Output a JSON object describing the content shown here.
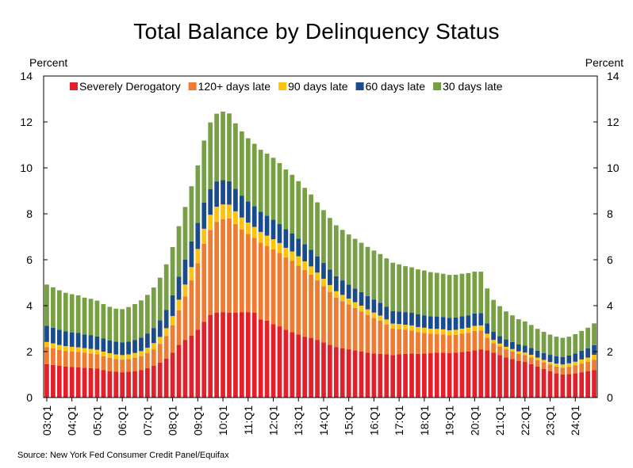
{
  "chart_data": {
    "type": "bar",
    "stacked": true,
    "title": "Total Balance by Delinquency Status",
    "ylabel_left": "Percent",
    "ylabel_right": "Percent",
    "ylim": [
      0,
      14
    ],
    "yticks": [
      0,
      2,
      4,
      6,
      8,
      10,
      12,
      14
    ],
    "xtick_labels": [
      "03:Q1",
      "04:Q1",
      "05:Q1",
      "06:Q1",
      "07:Q1",
      "08:Q1",
      "09:Q1",
      "10:Q1",
      "11:Q1",
      "12:Q1",
      "13:Q1",
      "14:Q1",
      "15:Q1",
      "16:Q1",
      "17:Q1",
      "18:Q1",
      "19:Q1",
      "20:Q1",
      "21:Q1",
      "22:Q1",
      "23:Q1",
      "24:Q1"
    ],
    "legend_position": "top",
    "source": "Source: New York Fed Consumer Credit Panel/Equifax",
    "series": [
      {
        "name": "Severely Derogatory",
        "color": "#e3202a",
        "values": [
          1.45,
          1.42,
          1.38,
          1.35,
          1.33,
          1.32,
          1.3,
          1.28,
          1.26,
          1.2,
          1.15,
          1.12,
          1.1,
          1.12,
          1.15,
          1.2,
          1.28,
          1.38,
          1.52,
          1.7,
          1.95,
          2.3,
          2.5,
          2.7,
          2.95,
          3.3,
          3.6,
          3.7,
          3.72,
          3.7,
          3.7,
          3.72,
          3.72,
          3.7,
          3.4,
          3.35,
          3.2,
          3.1,
          2.95,
          2.85,
          2.75,
          2.65,
          2.6,
          2.5,
          2.4,
          2.3,
          2.2,
          2.15,
          2.1,
          2.05,
          2.0,
          1.95,
          1.92,
          1.9,
          1.88,
          1.85,
          1.88,
          1.9,
          1.92,
          1.9,
          1.92,
          1.93,
          1.95,
          1.95,
          1.93,
          1.95,
          1.98,
          2.0,
          2.05,
          2.1,
          2.05,
          1.95,
          1.85,
          1.75,
          1.68,
          1.6,
          1.55,
          1.45,
          1.35,
          1.25,
          1.15,
          1.05,
          1.0,
          1.02,
          1.05,
          1.1,
          1.15,
          1.2
        ]
      },
      {
        "name": "120+ days late",
        "color": "#ee7b30",
        "values": [
          0.75,
          0.72,
          0.7,
          0.68,
          0.67,
          0.66,
          0.65,
          0.64,
          0.62,
          0.6,
          0.58,
          0.56,
          0.55,
          0.56,
          0.58,
          0.6,
          0.65,
          0.72,
          0.82,
          0.98,
          1.2,
          1.5,
          1.9,
          2.4,
          2.9,
          3.4,
          3.7,
          3.95,
          4.05,
          4.1,
          3.85,
          3.6,
          3.4,
          3.25,
          3.35,
          3.25,
          3.25,
          3.2,
          3.15,
          3.1,
          3.0,
          2.9,
          2.75,
          2.6,
          2.45,
          2.3,
          2.15,
          2.05,
          1.95,
          1.85,
          1.75,
          1.65,
          1.55,
          1.45,
          1.3,
          1.15,
          1.1,
          1.05,
          1.0,
          0.95,
          0.9,
          0.85,
          0.82,
          0.8,
          0.78,
          0.78,
          0.8,
          0.82,
          0.85,
          0.82,
          0.55,
          0.42,
          0.38,
          0.35,
          0.32,
          0.3,
          0.3,
          0.3,
          0.28,
          0.28,
          0.28,
          0.3,
          0.3,
          0.32,
          0.35,
          0.38,
          0.4,
          0.45
        ]
      },
      {
        "name": "90 days late",
        "color": "#fcc20c",
        "values": [
          0.22,
          0.22,
          0.21,
          0.21,
          0.21,
          0.21,
          0.2,
          0.2,
          0.2,
          0.2,
          0.2,
          0.2,
          0.2,
          0.2,
          0.21,
          0.22,
          0.24,
          0.27,
          0.3,
          0.34,
          0.4,
          0.46,
          0.52,
          0.58,
          0.62,
          0.65,
          0.66,
          0.66,
          0.64,
          0.6,
          0.56,
          0.52,
          0.5,
          0.48,
          0.46,
          0.45,
          0.44,
          0.43,
          0.42,
          0.41,
          0.4,
          0.38,
          0.36,
          0.34,
          0.32,
          0.3,
          0.28,
          0.27,
          0.26,
          0.25,
          0.25,
          0.24,
          0.23,
          0.22,
          0.22,
          0.22,
          0.22,
          0.22,
          0.22,
          0.22,
          0.22,
          0.22,
          0.22,
          0.22,
          0.22,
          0.22,
          0.22,
          0.22,
          0.22,
          0.22,
          0.18,
          0.14,
          0.12,
          0.11,
          0.11,
          0.11,
          0.11,
          0.11,
          0.11,
          0.11,
          0.12,
          0.13,
          0.14,
          0.15,
          0.16,
          0.18,
          0.19,
          0.21
        ]
      },
      {
        "name": "60 days late",
        "color": "#1a4c8c",
        "values": [
          0.7,
          0.68,
          0.66,
          0.64,
          0.63,
          0.62,
          0.6,
          0.6,
          0.58,
          0.57,
          0.56,
          0.55,
          0.55,
          0.56,
          0.57,
          0.59,
          0.62,
          0.66,
          0.72,
          0.8,
          0.9,
          1.0,
          1.08,
          1.12,
          1.14,
          1.14,
          1.12,
          1.1,
          1.06,
          1.02,
          0.98,
          0.95,
          0.92,
          0.9,
          0.88,
          0.87,
          0.85,
          0.83,
          0.81,
          0.79,
          0.77,
          0.75,
          0.73,
          0.71,
          0.69,
          0.67,
          0.65,
          0.63,
          0.61,
          0.6,
          0.59,
          0.58,
          0.57,
          0.56,
          0.55,
          0.55,
          0.55,
          0.55,
          0.55,
          0.55,
          0.54,
          0.54,
          0.54,
          0.54,
          0.54,
          0.54,
          0.54,
          0.54,
          0.54,
          0.54,
          0.45,
          0.36,
          0.33,
          0.32,
          0.31,
          0.3,
          0.3,
          0.3,
          0.3,
          0.3,
          0.31,
          0.32,
          0.33,
          0.34,
          0.36,
          0.38,
          0.4,
          0.42
        ]
      },
      {
        "name": "30 days late",
        "color": "#76a043",
        "values": [
          1.8,
          1.76,
          1.72,
          1.68,
          1.66,
          1.64,
          1.6,
          1.58,
          1.56,
          1.5,
          1.46,
          1.44,
          1.45,
          1.5,
          1.56,
          1.62,
          1.68,
          1.76,
          1.86,
          1.98,
          2.1,
          2.2,
          2.3,
          2.4,
          2.5,
          2.7,
          2.9,
          2.95,
          2.98,
          2.95,
          2.85,
          2.8,
          2.75,
          2.72,
          2.7,
          2.7,
          2.7,
          2.65,
          2.6,
          2.55,
          2.5,
          2.45,
          2.4,
          2.35,
          2.3,
          2.25,
          2.22,
          2.2,
          2.18,
          2.16,
          2.15,
          2.14,
          2.13,
          2.12,
          2.11,
          2.1,
          2.05,
          2.0,
          1.98,
          1.96,
          1.95,
          1.92,
          1.9,
          1.88,
          1.87,
          1.86,
          1.85,
          1.84,
          1.82,
          1.8,
          1.52,
          1.38,
          1.3,
          1.22,
          1.16,
          1.1,
          1.05,
          1.0,
          0.95,
          0.92,
          0.88,
          0.85,
          0.83,
          0.82,
          0.84,
          0.86,
          0.9,
          0.95
        ]
      }
    ]
  }
}
